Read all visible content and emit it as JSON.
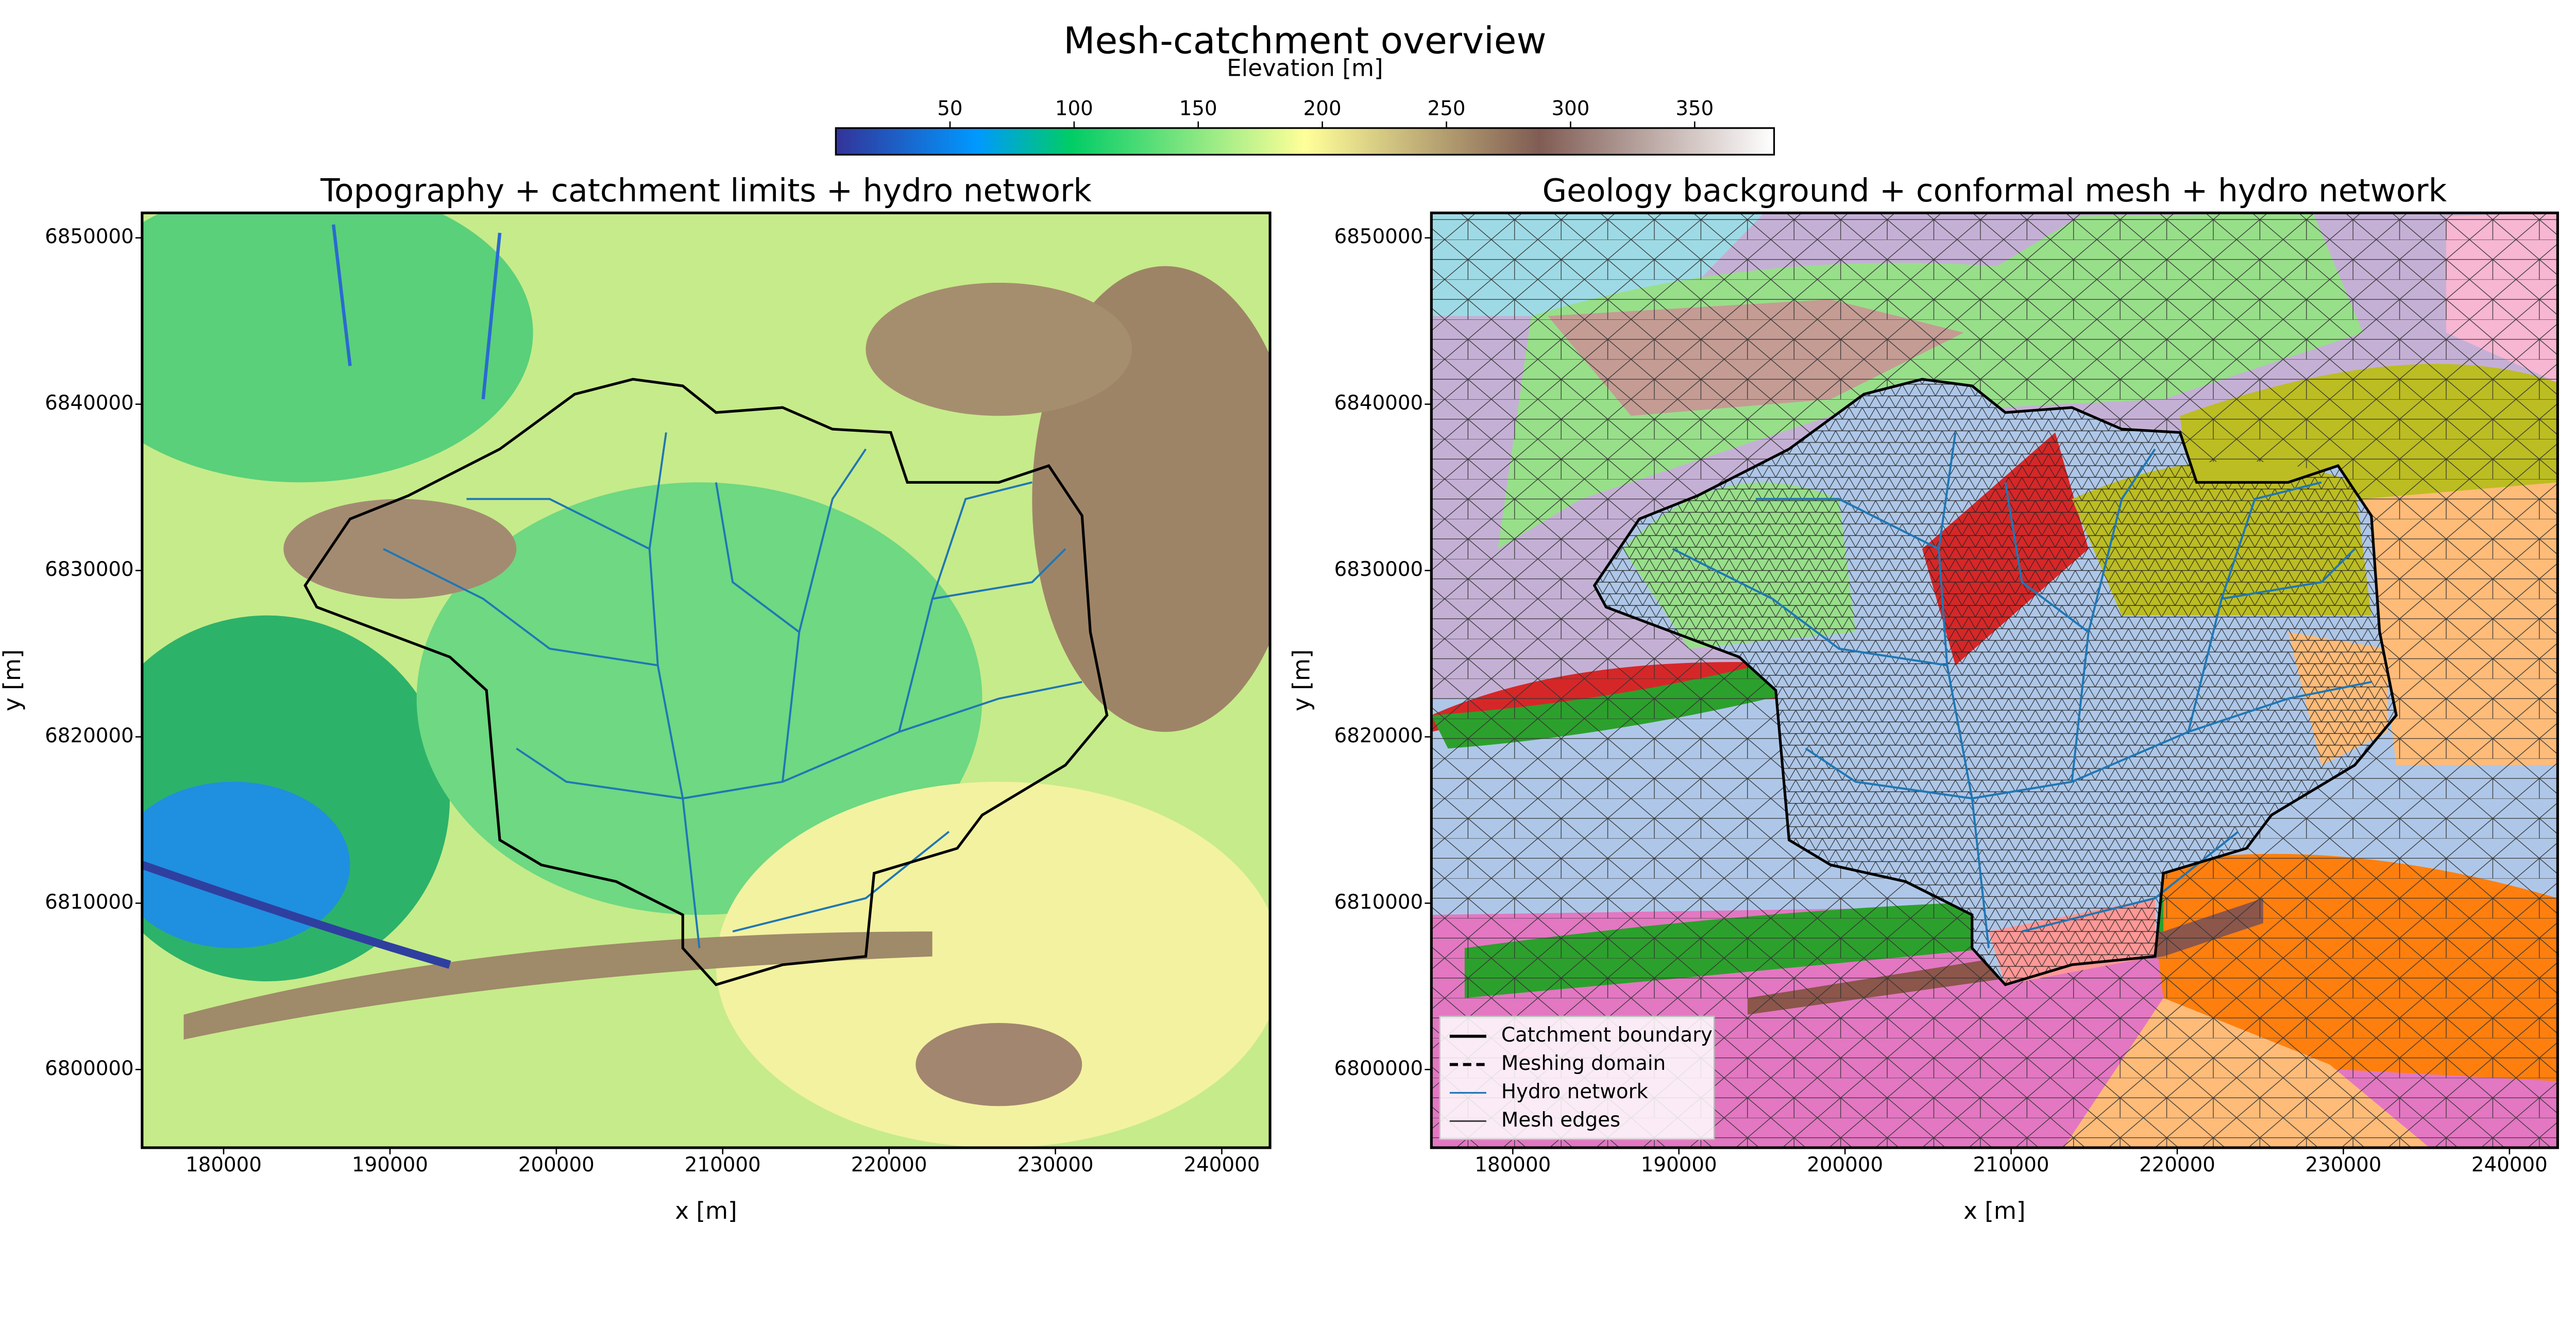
{
  "figure": {
    "title": "Mesh-catchment overview",
    "colorbar": {
      "label": "Elevation [m]",
      "clim": [
        4,
        382
      ],
      "ticks": [
        50,
        100,
        150,
        200,
        250,
        300,
        350
      ]
    }
  },
  "chart_data": [
    {
      "type": "map",
      "title": "Topography + catchment limits + hydro network",
      "xlabel": "x [m]",
      "ylabel": "y [m]",
      "xlim": [
        175100,
        242900
      ],
      "ylim": [
        6795300,
        6851500
      ],
      "xticks": [
        180000,
        190000,
        200000,
        210000,
        220000,
        230000,
        240000
      ],
      "yticks": [
        6800000,
        6810000,
        6820000,
        6830000,
        6840000,
        6850000
      ]
    },
    {
      "type": "map",
      "title": "Geology background + conformal mesh + hydro network",
      "xlabel": "x [m]",
      "ylabel": "y [m]",
      "xlim": [
        175100,
        242900
      ],
      "ylim": [
        6795300,
        6851500
      ],
      "xticks": [
        180000,
        190000,
        200000,
        210000,
        220000,
        230000,
        240000
      ],
      "yticks": [
        6800000,
        6810000,
        6820000,
        6830000,
        6840000,
        6850000
      ],
      "legend": {
        "corner": "lower left",
        "entries": [
          {
            "name": "Catchment boundary",
            "color": "#000000",
            "style": "solid"
          },
          {
            "name": "Meshing domain",
            "color": "#000000",
            "style": "dashed"
          },
          {
            "name": "Hydro network",
            "color": "#1f77b4",
            "style": "thin"
          },
          {
            "name": "Mesh edges",
            "color": "#444444",
            "style": "thin"
          }
        ]
      }
    }
  ]
}
